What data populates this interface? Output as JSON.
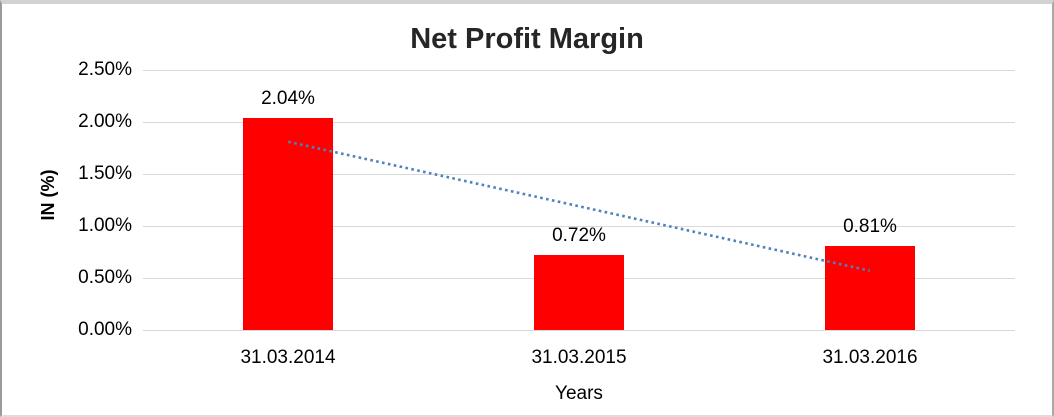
{
  "chart": {
    "title": "Net Profit Margin",
    "y_axis_title": "IN (%)",
    "x_axis_title": "Years"
  },
  "chart_data": {
    "type": "bar",
    "title": "Net Profit Margin",
    "xlabel": "Years",
    "ylabel": "IN (%)",
    "categories": [
      "31.03.2014",
      "31.03.2015",
      "31.03.2016"
    ],
    "values": [
      2.04,
      0.72,
      0.81
    ],
    "data_labels": [
      "2.04%",
      "0.72%",
      "0.81%"
    ],
    "unit": "%",
    "ylim": [
      0,
      2.5
    ],
    "y_tick_step": 0.5,
    "y_tick_labels": [
      "2.50%",
      "2.00%",
      "1.50%",
      "1.00%",
      "0.50%",
      "0.00%"
    ],
    "grid": "horizontal",
    "legend_position": "none",
    "trendline": {
      "type": "linear",
      "style": "dotted",
      "start_value": 1.81,
      "end_value": 0.57
    },
    "colors": {
      "bar": "#ff0000",
      "trendline": "#4f81bd",
      "gridline": "#d9d9d9",
      "text": "#000000",
      "background": "#ffffff"
    }
  }
}
